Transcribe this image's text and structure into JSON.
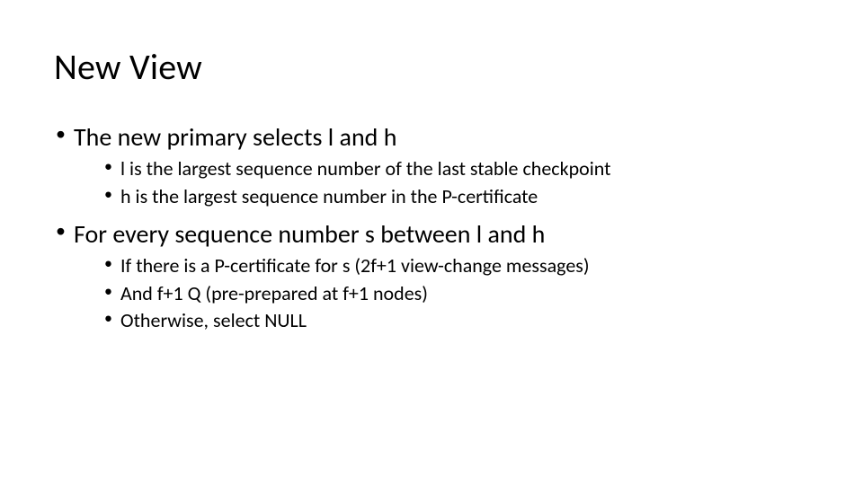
{
  "slide": {
    "title": "New View",
    "background_color": "#ffffff",
    "text_color": "#000000",
    "font_family": "Calibri",
    "title_fontsize": 40,
    "level1_fontsize": 28,
    "level2_fontsize": 22,
    "bullets": [
      {
        "text": "The new primary selects l and h",
        "children": [
          {
            "text": "l is the largest sequence number of the last stable checkpoint"
          },
          {
            "text": "h is the largest sequence number in the P-certificate"
          }
        ]
      },
      {
        "text": "For every sequence number s between l and h",
        "children": [
          {
            "text": "If there is a P-certificate for s (2f+1 view-change messages)"
          },
          {
            "text": "And f+1 Q (pre-prepared at f+1 nodes)"
          },
          {
            "text": "Otherwise, select NULL"
          }
        ]
      }
    ]
  }
}
